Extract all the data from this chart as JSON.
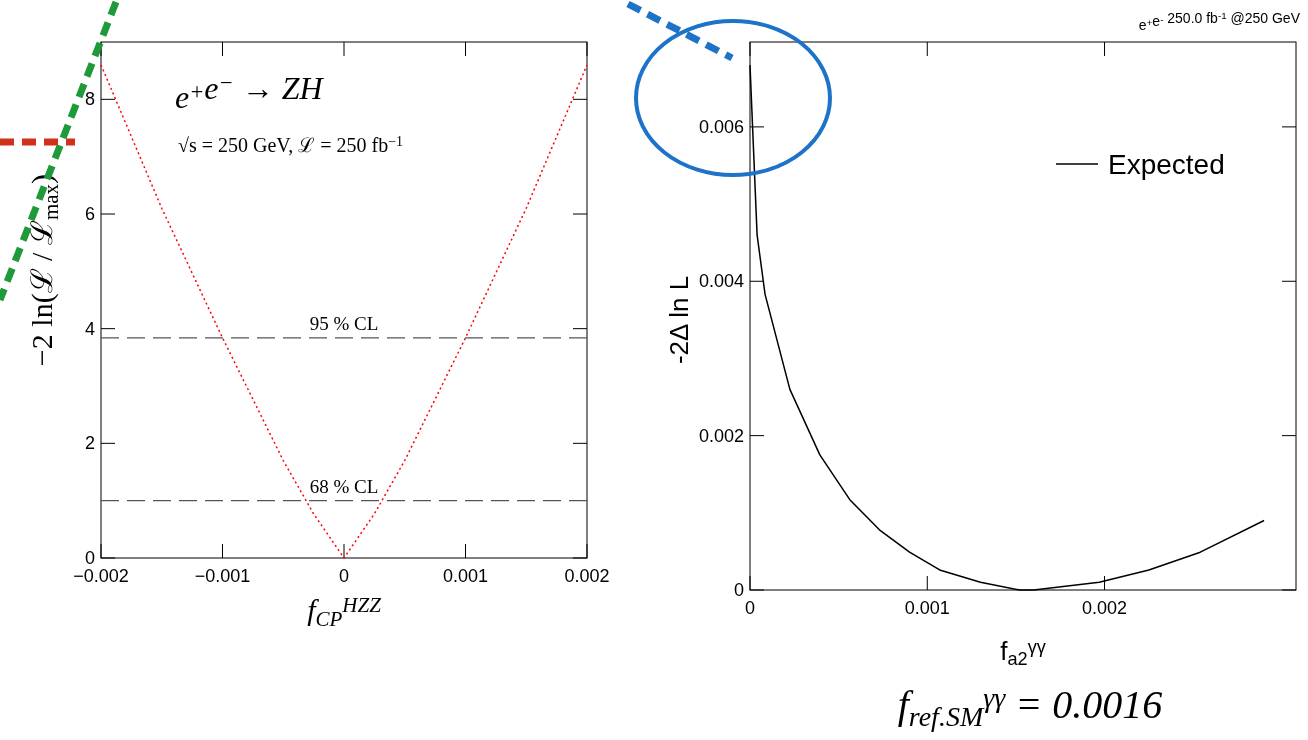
{
  "chart_data": [
    {
      "type": "line",
      "xlabel": "f$_{CP}$$^{HZZ}$",
      "ylabel": "−2 ln(ℒ / ℒ$_{max}$)",
      "xlim": [
        -0.002,
        0.002
      ],
      "xticks": [
        {
          "value": -0.002,
          "label": "−0.002"
        },
        {
          "value": -0.001,
          "label": "−0.001"
        },
        0,
        0.001,
        0.002
      ],
      "ylim": [
        0,
        9
      ],
      "yticks": [
        0,
        2,
        4,
        6,
        8
      ],
      "series": [
        {
          "color": "#ff0000",
          "line_style": "dotted",
          "x": [
            -0.002,
            -0.0015,
            -0.001,
            -0.0005,
            -0.00025,
            0,
            0.00025,
            0.0005,
            0.001,
            0.0015,
            0.002
          ],
          "values": [
            8.6,
            6.1,
            3.84,
            1.7,
            0.77,
            0,
            0.77,
            1.7,
            3.84,
            6.1,
            8.6
          ]
        }
      ],
      "ref_lines": [
        {
          "axis": "y",
          "value": 3.84,
          "label": "95 % CL",
          "color": "#555555",
          "line_style": "dashed"
        },
        {
          "axis": "y",
          "value": 1,
          "label": "68 % CL",
          "color": "#555555",
          "line_style": "dashed"
        }
      ],
      "annotations": [
        "e$^{+}$e$^{−}$ → ZH",
        "√s = 250 GeV, ℒ = 250 fb$^{−1}$"
      ],
      "grid": false,
      "legend": false
    },
    {
      "type": "line",
      "title": "e$^{+}$e$^{-}$ 250.0 fb$^{-1}$ @250 GeV",
      "xlabel": "f$_{a2}$$^{γγ}$",
      "ylabel": "-2Δ ln L",
      "xlim": [
        0,
        0.00308
      ],
      "xticks": [
        0,
        0.001,
        0.002
      ],
      "ylim": [
        0,
        0.0071
      ],
      "yticks": [
        0,
        0.002,
        0.004,
        0.006
      ],
      "series": [
        {
          "name": "Expected",
          "color": "#000000",
          "line_style": "solid",
          "x": [
            0,
            4e-05,
            8.5e-05,
            0.000225,
            0.000394,
            0.000563,
            0.00073,
            0.0009,
            0.00107,
            0.0013,
            0.00152,
            0.0016,
            0.00197,
            0.00225,
            0.00254,
            0.0029
          ],
          "values": [
            0.0068,
            0.0046,
            0.00383,
            0.0026,
            0.00175,
            0.00117,
            0.00078,
            0.00049,
            0.00026,
            0.0001,
            0,
            0,
            0.0001,
            0.00026,
            0.00049,
            0.0009
          ]
        }
      ],
      "annotations": [
        "f$_{ref.SM}$$^{γγ}$ = 0.0016"
      ],
      "grid": false,
      "legend": "top right"
    }
  ]
}
